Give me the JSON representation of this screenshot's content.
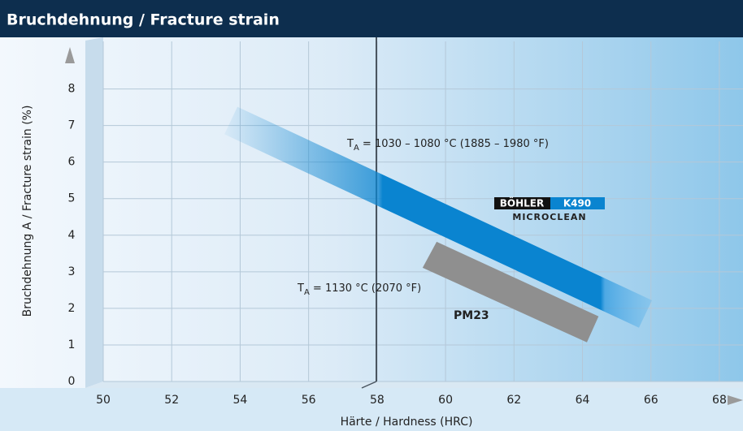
{
  "chart_data": {
    "type": "band",
    "title": "Bruchdehnung / Fracture strain",
    "x_label": "Härte / Hardness (HRC)",
    "y_label": "Bruchdehnung A / Fracture strain (%)",
    "xlim": [
      50,
      68.5
    ],
    "ylim": [
      0,
      9.3
    ],
    "xticks": [
      50,
      52,
      54,
      56,
      58,
      60,
      62,
      64,
      66,
      68
    ],
    "yticks": [
      0,
      1,
      2,
      3,
      4,
      5,
      6,
      7,
      8
    ],
    "grid": true,
    "series": [
      {
        "name": "K490",
        "color": "#0a84d0",
        "x": [
          53.92,
          66.03,
          65.65,
          53.54
        ],
        "y": [
          7.51,
          2.22,
          1.47,
          6.76
        ]
      },
      {
        "name": "PM23",
        "color": "#8f8f8f",
        "x": [
          59.74,
          64.47,
          64.13,
          59.33
        ],
        "y": [
          3.82,
          1.78,
          1.07,
          3.11
        ]
      }
    ],
    "annotations": [
      {
        "text": "T",
        "sub": "A",
        "rest": " = 1030 – 1080 °C (1885 – 1980 °F)"
      },
      {
        "text": "T",
        "sub": "A",
        "rest": " = 1130 °C (2070 °F)"
      }
    ],
    "brand": {
      "maker": "BÖHLER",
      "grade": "K490",
      "process": "MICROCLEAN"
    }
  }
}
